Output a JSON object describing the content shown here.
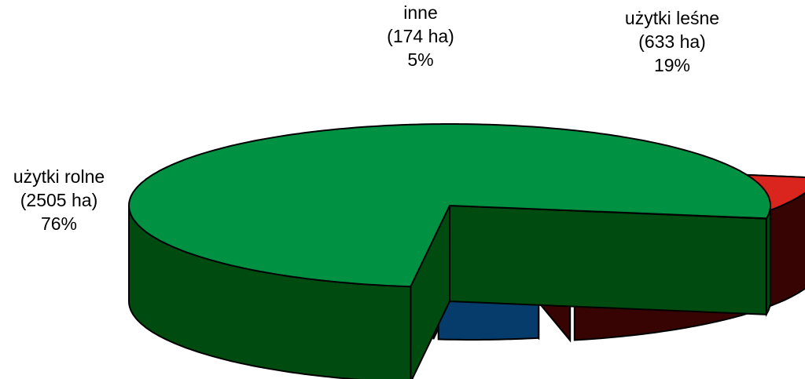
{
  "chart_data": {
    "type": "pie",
    "style": "3d-exploded",
    "slices": [
      {
        "name": "użytki rolne",
        "value": 2505,
        "value_label": "(2505 ha)",
        "percent_label": "76%",
        "percent": 76,
        "color": "#009242",
        "side_color": "#004C10"
      },
      {
        "name": "użytki leśne",
        "value": 633,
        "value_label": "(633 ha)",
        "percent_label": "19%",
        "percent": 19,
        "color": "#DA241E",
        "side_color": "#380303"
      },
      {
        "name": "inne",
        "value": 174,
        "value_label": "(174 ha)",
        "percent_label": "5%",
        "percent": 5,
        "color": "#0099DE",
        "side_color": "#063C6C"
      }
    ]
  }
}
